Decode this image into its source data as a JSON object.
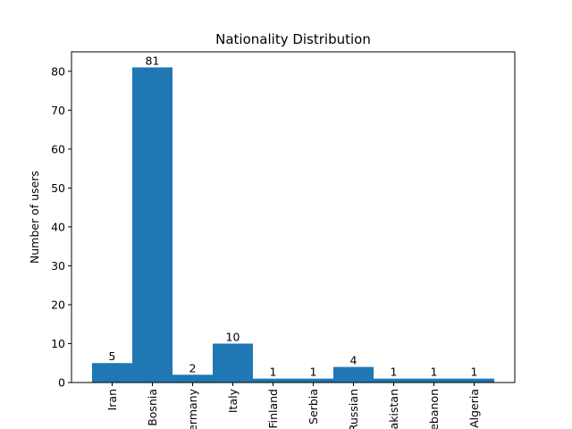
{
  "chart_data": {
    "type": "bar",
    "title": "Nationality Distribution",
    "xlabel": "",
    "ylabel": "Number of users",
    "categories": [
      "Iran",
      "Bosnia",
      "Germany",
      "Italy",
      "Finland",
      "Serbia",
      "Russian",
      "Pakistan",
      "Lebanon",
      "Algeria"
    ],
    "values": [
      5,
      81,
      2,
      10,
      1,
      1,
      4,
      1,
      1,
      1
    ],
    "data_labels": [
      "5",
      "81",
      "2",
      "10",
      "1",
      "1",
      "4",
      "1",
      "1",
      "1"
    ],
    "ylim": [
      0,
      85
    ],
    "yticks": [
      0,
      10,
      20,
      30,
      40,
      50,
      60,
      70,
      80
    ],
    "bar_color": "#1f77b4",
    "grid": false,
    "legend": "none"
  }
}
